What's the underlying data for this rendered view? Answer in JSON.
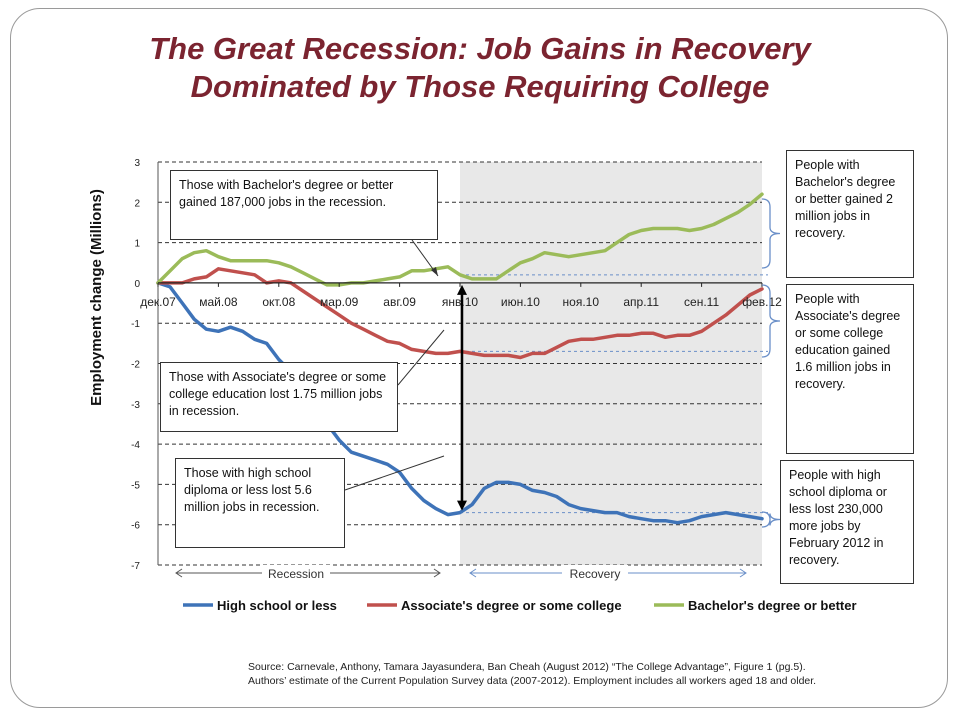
{
  "title_line1": "The Great Recession: Job Gains in Recovery",
  "title_line2": "Dominated by Those Requiring College",
  "source_line1": "Source: Carnevale, Anthony, Tamara Jayasundera, Ban Cheah (August 2012) “The College Advantage”, Figure 1 (pg.5).",
  "source_line2": "Authors’ estimate of the Current Population Survey data (2007-2012). Employment includes all workers aged 18 and older.",
  "callouts": {
    "bachelor_recession": "Those with Bachelor's degree or better gained 187,000 jobs in the recession.",
    "associate_recession": "Those with Associate's degree or some college education lost 1.75 million jobs in recession.",
    "highschool_recession": "Those with high school diploma or less lost 5.6 million jobs in recession.",
    "bachelor_recovery": "People with Bachelor's degree or better gained 2 million jobs in recovery.",
    "associate_recovery": "People with Associate's degree or some college education gained 1.6 million jobs in recovery.",
    "highschool_recovery": "People with high school diploma or less lost 230,000 more jobs by February 2012 in recovery."
  },
  "chart_data": {
    "type": "line",
    "title": "",
    "xlabel": "",
    "ylabel": "Employment change (Millions)",
    "ylim": [
      -7,
      3
    ],
    "yticks": [
      3,
      2,
      1,
      0,
      -1,
      -2,
      -3,
      -4,
      -5,
      -6,
      -7
    ],
    "grid": "dashed horizontal",
    "legend": "bottom",
    "x_tick_labels": [
      "дек.07",
      "май.08",
      "окт.08",
      "мар.09",
      "авг.09",
      "янв.10",
      "июн.10",
      "ноя.10",
      "апр.11",
      "сен.11",
      "фев.12"
    ],
    "shaded_region": {
      "label": "Recovery",
      "from": "янв.10",
      "to": "фев.12",
      "color": "#e8e8e8"
    },
    "phase_labels": [
      "Recession",
      "Recovery"
    ],
    "series": [
      {
        "name": "High school or less",
        "color": "#3e73b8",
        "values": [
          0,
          -0.1,
          -0.5,
          -0.9,
          -1.15,
          -1.2,
          -1.1,
          -1.2,
          -1.4,
          -1.5,
          -1.9,
          -2.2,
          -2.5,
          -2.9,
          -3.5,
          -3.9,
          -4.2,
          -4.3,
          -4.4,
          -4.5,
          -4.7,
          -5.1,
          -5.4,
          -5.6,
          -5.75,
          -5.7,
          -5.5,
          -5.1,
          -4.95,
          -4.95,
          -5.0,
          -5.15,
          -5.2,
          -5.3,
          -5.5,
          -5.6,
          -5.65,
          -5.7,
          -5.7,
          -5.8,
          -5.85,
          -5.9,
          -5.9,
          -5.95,
          -5.9,
          -5.8,
          -5.75,
          -5.7,
          -5.75,
          -5.8,
          -5.85
        ]
      },
      {
        "name": "Associate's degree or some college",
        "color": "#c0504d",
        "values": [
          0,
          0,
          0,
          0.1,
          0.15,
          0.35,
          0.3,
          0.25,
          0.2,
          0.0,
          0.05,
          0.0,
          -0.2,
          -0.4,
          -0.6,
          -0.8,
          -1.0,
          -1.15,
          -1.3,
          -1.45,
          -1.5,
          -1.65,
          -1.7,
          -1.75,
          -1.75,
          -1.7,
          -1.75,
          -1.8,
          -1.8,
          -1.8,
          -1.85,
          -1.75,
          -1.75,
          -1.6,
          -1.45,
          -1.4,
          -1.4,
          -1.35,
          -1.3,
          -1.3,
          -1.25,
          -1.25,
          -1.35,
          -1.3,
          -1.3,
          -1.2,
          -1.0,
          -0.8,
          -0.55,
          -0.3,
          -0.15
        ]
      },
      {
        "name": "Bachelor's degree or better",
        "color": "#9bbb59",
        "values": [
          0,
          0.3,
          0.6,
          0.75,
          0.8,
          0.65,
          0.55,
          0.55,
          0.55,
          0.55,
          0.5,
          0.4,
          0.25,
          0.1,
          -0.05,
          -0.05,
          0.0,
          0.0,
          0.05,
          0.1,
          0.15,
          0.3,
          0.3,
          0.35,
          0.4,
          0.2,
          0.1,
          0.1,
          0.1,
          0.3,
          0.5,
          0.6,
          0.75,
          0.7,
          0.65,
          0.7,
          0.75,
          0.8,
          1.0,
          1.2,
          1.3,
          1.35,
          1.35,
          1.35,
          1.3,
          1.35,
          1.45,
          1.6,
          1.75,
          1.95,
          2.2
        ]
      }
    ]
  }
}
